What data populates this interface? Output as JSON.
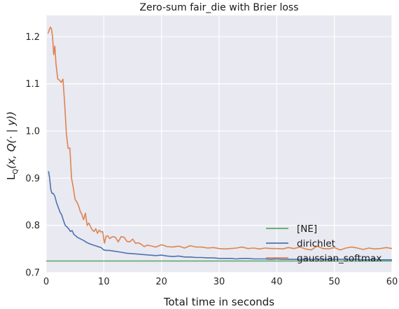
{
  "chart_data": {
    "type": "line",
    "title": "Zero-sum fair_die with Brier loss",
    "xlabel": "Total time in seconds",
    "ylabel_parts": [
      "L",
      "Q",
      "(x, Q(· | y))"
    ],
    "xlim": [
      0,
      60
    ],
    "ylim": [
      0.7,
      1.245
    ],
    "xticks": [
      0,
      10,
      20,
      30,
      40,
      50,
      60
    ],
    "yticks": [
      0.7,
      0.8,
      0.9,
      1.0,
      1.1,
      1.2
    ],
    "xtick_labels": [
      "0",
      "10",
      "20",
      "30",
      "40",
      "50",
      "60"
    ],
    "ytick_labels": [
      "0.7",
      "0.8",
      "0.9",
      "1.0",
      "1.1",
      "1.2"
    ],
    "grid": true,
    "background": "#e9e9f1",
    "legend_position": "lower-right",
    "series": [
      {
        "name": "[NE]",
        "color": "#55a868",
        "x": [
          0,
          60
        ],
        "y": [
          0.7245,
          0.7245
        ]
      },
      {
        "name": "dirichlet",
        "color": "#4c72b0",
        "x": [
          0.4,
          0.6,
          0.8,
          1.0,
          1.2,
          1.5,
          1.8,
          2.1,
          2.4,
          2.7,
          3.0,
          3.3,
          3.6,
          3.9,
          4.2,
          4.5,
          4.8,
          5.1,
          5.5,
          6.0,
          6.5,
          7.0,
          7.5,
          8.0,
          8.5,
          9.0,
          9.5,
          10.0,
          10.5,
          11.0,
          12.0,
          13.0,
          14.0,
          15.0,
          16.0,
          17.0,
          18.0,
          19.0,
          20.0,
          21.0,
          22.0,
          23.0,
          24.0,
          25.0,
          26.0,
          27.0,
          28.0,
          29.0,
          30.0,
          31.0,
          32.0,
          33.0,
          34.0,
          35.0,
          36.0,
          37.0,
          38.0,
          39.0,
          40.0,
          41.0,
          42.0,
          43.0,
          44.0,
          45.0,
          46.0,
          47.0,
          48.0,
          49.0,
          50.0,
          51.0,
          52.0,
          53.0,
          54.0,
          55.0,
          56.0,
          57.0,
          58.0,
          59.0,
          60.0
        ],
        "y": [
          0.915,
          0.9,
          0.876,
          0.868,
          0.868,
          0.862,
          0.848,
          0.838,
          0.828,
          0.822,
          0.81,
          0.8,
          0.797,
          0.793,
          0.787,
          0.789,
          0.781,
          0.778,
          0.774,
          0.771,
          0.768,
          0.764,
          0.761,
          0.759,
          0.757,
          0.755,
          0.753,
          0.748,
          0.747,
          0.747,
          0.745,
          0.743,
          0.741,
          0.74,
          0.739,
          0.738,
          0.737,
          0.736,
          0.737,
          0.735,
          0.734,
          0.735,
          0.733,
          0.733,
          0.732,
          0.732,
          0.731,
          0.731,
          0.73,
          0.73,
          0.73,
          0.729,
          0.73,
          0.73,
          0.729,
          0.729,
          0.729,
          0.728,
          0.729,
          0.728,
          0.728,
          0.728,
          0.728,
          0.728,
          0.728,
          0.728,
          0.728,
          0.728,
          0.728,
          0.728,
          0.728,
          0.728,
          0.728,
          0.727,
          0.727,
          0.728,
          0.727,
          0.727,
          0.727
        ]
      },
      {
        "name": "gaussian_softmax",
        "color": "#dd8452",
        "x": [
          0.3,
          0.5,
          0.7,
          0.9,
          1.1,
          1.3,
          1.5,
          1.7,
          2.0,
          2.3,
          2.6,
          2.9,
          3.2,
          3.5,
          3.8,
          4.1,
          4.4,
          4.7,
          5.0,
          5.3,
          5.6,
          5.9,
          6.2,
          6.5,
          6.8,
          7.1,
          7.4,
          7.7,
          8.0,
          8.3,
          8.6,
          8.9,
          9.2,
          9.5,
          9.8,
          10.1,
          10.4,
          10.7,
          11.0,
          11.5,
          12.0,
          12.5,
          13.0,
          13.5,
          14.0,
          14.5,
          15.0,
          15.5,
          16.0,
          16.5,
          17.0,
          17.5,
          18.0,
          19.0,
          20.0,
          21.0,
          22.0,
          23.0,
          24.0,
          25.0,
          26.0,
          27.0,
          28.0,
          29.0,
          30.0,
          31.0,
          32.0,
          33.0,
          34.0,
          35.0,
          36.0,
          37.0,
          38.0,
          39.0,
          40.0,
          41.0,
          42.0,
          43.0,
          44.0,
          45.0,
          46.0,
          47.0,
          48.0,
          49.0,
          50.0,
          51.0,
          52.0,
          53.0,
          54.0,
          55.0,
          56.0,
          57.0,
          58.0,
          59.0,
          60.0
        ],
        "y": [
          1.207,
          1.213,
          1.22,
          1.217,
          1.2,
          1.162,
          1.18,
          1.142,
          1.11,
          1.108,
          1.103,
          1.11,
          1.06,
          0.995,
          0.963,
          0.964,
          0.9,
          0.88,
          0.855,
          0.85,
          0.842,
          0.83,
          0.823,
          0.812,
          0.826,
          0.8,
          0.805,
          0.797,
          0.79,
          0.787,
          0.793,
          0.783,
          0.79,
          0.786,
          0.787,
          0.762,
          0.777,
          0.778,
          0.772,
          0.776,
          0.775,
          0.765,
          0.776,
          0.775,
          0.766,
          0.765,
          0.771,
          0.762,
          0.763,
          0.76,
          0.755,
          0.758,
          0.757,
          0.754,
          0.759,
          0.755,
          0.754,
          0.756,
          0.752,
          0.757,
          0.754,
          0.754,
          0.752,
          0.753,
          0.751,
          0.75,
          0.751,
          0.752,
          0.754,
          0.751,
          0.752,
          0.75,
          0.752,
          0.751,
          0.751,
          0.75,
          0.753,
          0.751,
          0.754,
          0.75,
          0.748,
          0.756,
          0.751,
          0.75,
          0.753,
          0.748,
          0.752,
          0.754,
          0.752,
          0.749,
          0.752,
          0.75,
          0.751,
          0.753,
          0.751
        ]
      }
    ]
  }
}
